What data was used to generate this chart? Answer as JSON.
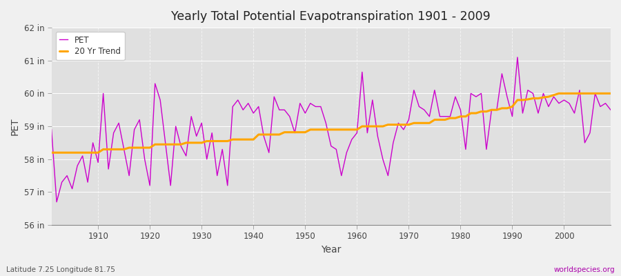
{
  "title": "Yearly Total Potential Evapotranspiration 1901 - 2009",
  "xlabel": "Year",
  "ylabel": "PET",
  "subtitle_left": "Latitude 7.25 Longitude 81.75",
  "subtitle_right": "worldspecies.org",
  "ylim": [
    56,
    62
  ],
  "xlim": [
    1901,
    2009
  ],
  "yticks": [
    56,
    57,
    58,
    59,
    60,
    61,
    62
  ],
  "ytick_labels": [
    "56 in",
    "57 in",
    "58 in",
    "59 in",
    "60 in",
    "61 in",
    "62 in"
  ],
  "pet_color": "#CC00CC",
  "trend_color": "#FFA500",
  "bg_color": "#F0F0F0",
  "plot_bg_color": "#E0E0E0",
  "grid_color": "#FFFFFF",
  "pet_data": [
    58.9,
    56.7,
    57.3,
    57.5,
    57.1,
    57.8,
    58.1,
    57.3,
    58.5,
    57.9,
    60.0,
    57.7,
    58.8,
    59.1,
    58.3,
    57.5,
    58.9,
    59.2,
    58.0,
    57.2,
    60.3,
    59.8,
    58.5,
    57.2,
    59.0,
    58.4,
    58.1,
    59.3,
    58.7,
    59.1,
    58.0,
    58.8,
    57.5,
    58.3,
    57.2,
    59.6,
    59.8,
    59.5,
    59.7,
    59.4,
    59.6,
    58.7,
    58.2,
    59.9,
    59.5,
    59.5,
    59.3,
    58.8,
    59.7,
    59.4,
    59.7,
    59.6,
    59.6,
    59.1,
    58.4,
    58.3,
    57.5,
    58.2,
    58.6,
    58.8,
    60.65,
    58.8,
    59.8,
    58.7,
    58.0,
    57.5,
    58.5,
    59.1,
    58.9,
    59.2,
    60.1,
    59.6,
    59.5,
    59.3,
    60.1,
    59.3,
    59.3,
    59.3,
    59.9,
    59.5,
    58.3,
    60.0,
    59.9,
    60.0,
    58.3,
    59.5,
    59.5,
    60.6,
    59.9,
    59.3,
    61.1,
    59.4,
    60.1,
    60.0,
    59.4,
    60.0,
    59.6,
    59.9,
    59.7,
    59.8,
    59.7,
    59.4,
    60.1,
    58.5,
    58.8,
    60.0,
    59.6,
    59.7,
    59.5
  ],
  "trend_data": [
    58.2,
    58.2,
    58.2,
    58.2,
    58.2,
    58.2,
    58.2,
    58.2,
    58.2,
    58.2,
    58.3,
    58.3,
    58.3,
    58.3,
    58.3,
    58.35,
    58.35,
    58.35,
    58.35,
    58.35,
    58.45,
    58.45,
    58.45,
    58.45,
    58.45,
    58.45,
    58.5,
    58.5,
    58.5,
    58.5,
    58.55,
    58.55,
    58.55,
    58.55,
    58.55,
    58.6,
    58.6,
    58.6,
    58.6,
    58.6,
    58.75,
    58.75,
    58.75,
    58.75,
    58.75,
    58.82,
    58.82,
    58.82,
    58.82,
    58.82,
    58.9,
    58.9,
    58.9,
    58.9,
    58.9,
    58.9,
    58.9,
    58.9,
    58.9,
    58.9,
    59.0,
    59.0,
    59.0,
    59.0,
    59.0,
    59.05,
    59.05,
    59.05,
    59.05,
    59.05,
    59.1,
    59.1,
    59.1,
    59.1,
    59.2,
    59.2,
    59.2,
    59.25,
    59.25,
    59.3,
    59.3,
    59.4,
    59.4,
    59.45,
    59.45,
    59.5,
    59.5,
    59.55,
    59.55,
    59.6,
    59.8,
    59.8,
    59.82,
    59.85,
    59.85,
    59.88,
    59.9,
    59.95,
    60.0,
    60.0,
    60.0,
    60.0,
    60.0,
    60.0,
    60.0,
    60.0,
    60.0,
    60.0,
    60.0
  ]
}
